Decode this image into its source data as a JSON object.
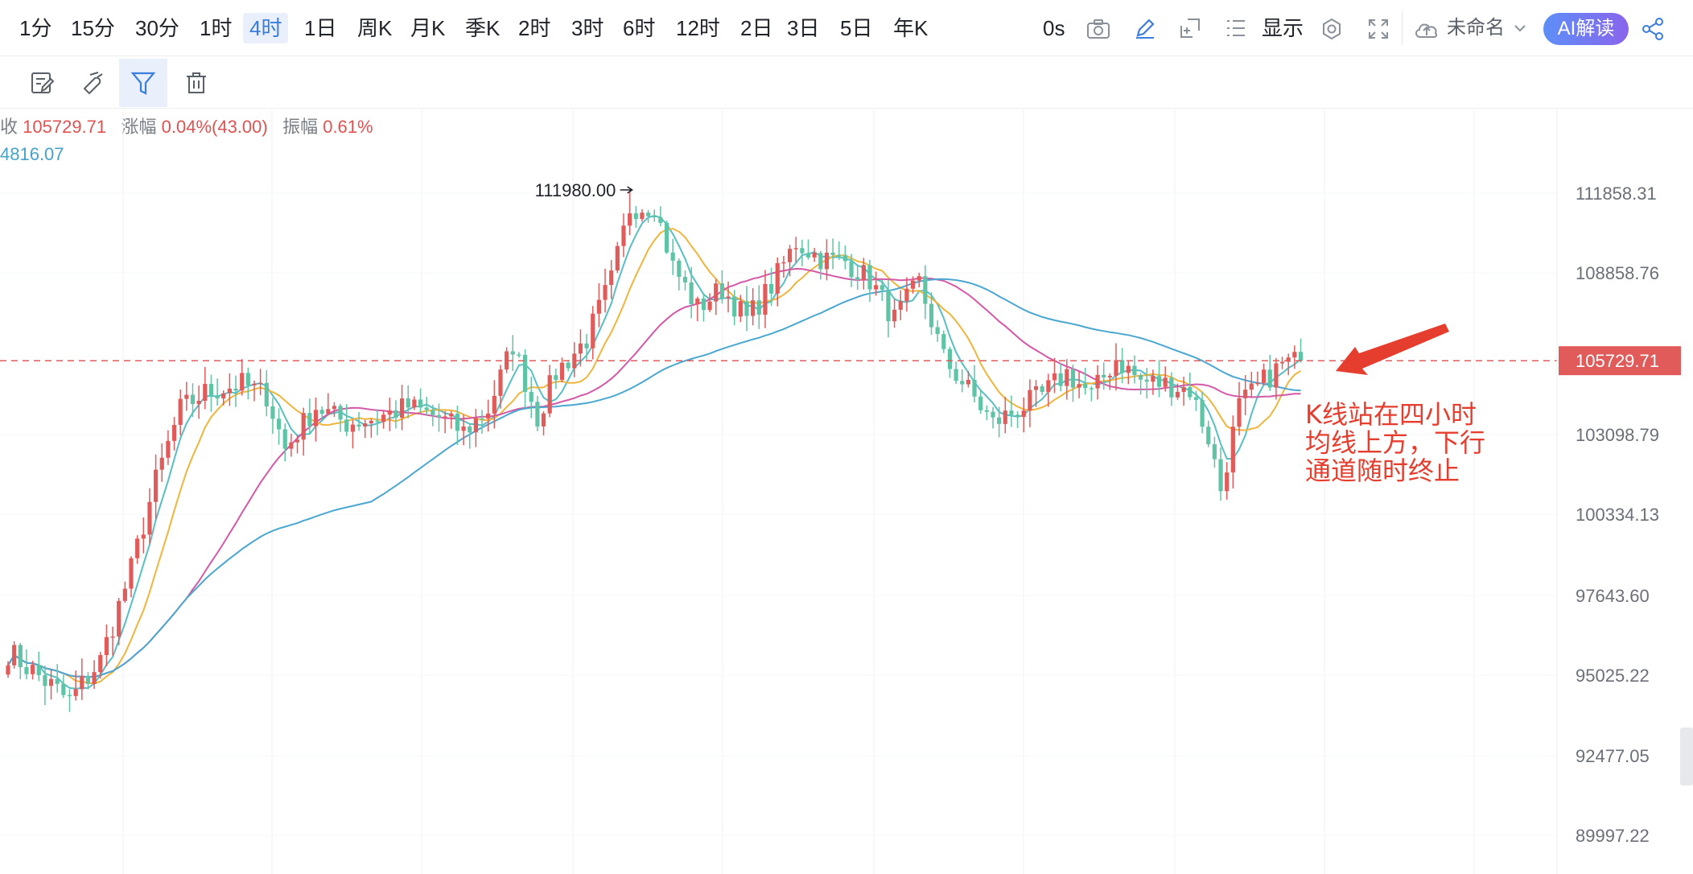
{
  "timeframes": [
    {
      "label": "1分",
      "active": false
    },
    {
      "label": "15分",
      "active": false
    },
    {
      "label": "30分",
      "active": false
    },
    {
      "label": "1时",
      "active": false
    },
    {
      "label": "4时",
      "active": true
    },
    {
      "label": "1日",
      "active": false
    },
    {
      "label": "周K",
      "active": false
    },
    {
      "label": "月K",
      "active": false
    },
    {
      "label": "季K",
      "active": false
    },
    {
      "label": "2时",
      "active": false
    },
    {
      "label": "3时",
      "active": false
    },
    {
      "label": "6时",
      "active": false
    },
    {
      "label": "12时",
      "active": false
    },
    {
      "label": "2日",
      "active": false
    },
    {
      "label": "3日",
      "active": false
    },
    {
      "label": "5日",
      "active": false
    },
    {
      "label": "年K",
      "active": false
    }
  ],
  "toolbar": {
    "countdown": "0s",
    "display_label": "显示",
    "layout_name": "未命名",
    "ai_label": "AI解读",
    "icons": [
      "camera-icon",
      "pencil-icon",
      "add-window-icon",
      "list-icon",
      "settings-icon",
      "fullscreen-icon",
      "cloud-icon",
      "chevron-down-icon",
      "share-icon"
    ]
  },
  "drawing_tools": [
    {
      "name": "note-icon",
      "active": false
    },
    {
      "name": "magnet-icon",
      "active": false
    },
    {
      "name": "filter-icon",
      "active": true
    },
    {
      "name": "trash-icon",
      "active": false
    }
  ],
  "ohlc": {
    "close_label": "收",
    "close_value": "105729.71",
    "change_label": "涨幅",
    "change_value": "0.04%(43.00)",
    "amplitude_label": "振幅",
    "amplitude_value": "0.61%"
  },
  "ma_value": "4816.07",
  "colors": {
    "up": "#e25b5b",
    "down": "#5fc3a6",
    "ma_yellow": "#f0b53c",
    "ma_teal": "#57bfc4",
    "ma_pink": "#d458a8",
    "ma_blue": "#4aa7d1",
    "annotation": "#e53e2e",
    "price_tag": "#e25b5b"
  },
  "chart_data": {
    "type": "candlestick",
    "y_ticks": [
      "111858.31",
      "108858.76",
      "103098.79",
      "100334.13",
      "97643.60",
      "95025.22",
      "92477.05",
      "89997.22"
    ],
    "current_price": "105729.71",
    "max_label": "111980.00",
    "max_value": 111980,
    "anchors_close": [
      [
        0,
        95800
      ],
      [
        5,
        95000
      ],
      [
        10,
        94200
      ],
      [
        15,
        95500
      ],
      [
        20,
        98500
      ],
      [
        24,
        101500
      ],
      [
        28,
        104000
      ],
      [
        32,
        104600
      ],
      [
        38,
        104900
      ],
      [
        42,
        104500
      ],
      [
        45,
        102600
      ],
      [
        50,
        104100
      ],
      [
        55,
        103500
      ],
      [
        60,
        103700
      ],
      [
        65,
        104100
      ],
      [
        70,
        103700
      ],
      [
        74,
        103200
      ],
      [
        78,
        104000
      ],
      [
        82,
        106300
      ],
      [
        86,
        103700
      ],
      [
        89,
        105300
      ],
      [
        94,
        106500
      ],
      [
        98,
        108600
      ],
      [
        101,
        111300
      ],
      [
        105,
        111400
      ],
      [
        108,
        109100
      ],
      [
        112,
        107600
      ],
      [
        116,
        108300
      ],
      [
        120,
        107200
      ],
      [
        124,
        108400
      ],
      [
        128,
        110000
      ],
      [
        132,
        109400
      ],
      [
        136,
        109300
      ],
      [
        140,
        108600
      ],
      [
        144,
        107200
      ],
      [
        148,
        108500
      ],
      [
        152,
        105800
      ],
      [
        156,
        104700
      ],
      [
        160,
        103500
      ],
      [
        164,
        104000
      ],
      [
        168,
        104500
      ],
      [
        172,
        105300
      ],
      [
        176,
        104500
      ],
      [
        180,
        105800
      ],
      [
        184,
        105000
      ],
      [
        188,
        104900
      ],
      [
        192,
        104700
      ],
      [
        195,
        103000
      ],
      [
        197,
        101200
      ],
      [
        200,
        104100
      ],
      [
        204,
        105000
      ],
      [
        207,
        105600
      ],
      [
        210,
        105729
      ]
    ]
  },
  "annotation": {
    "line1": "K线站在四小时",
    "line2": "均线上方，下行",
    "line3": "通道随时终止"
  }
}
